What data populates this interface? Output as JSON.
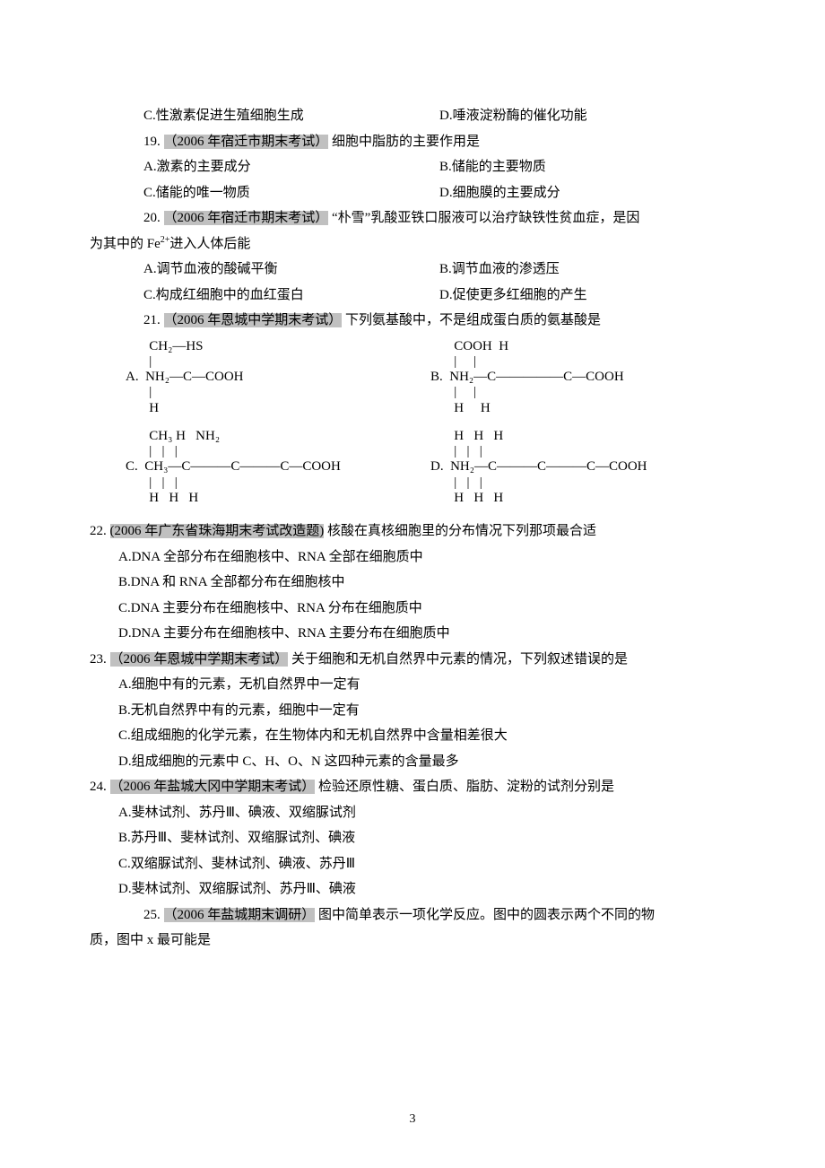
{
  "q18": {
    "optC": "C.性激素促进生殖细胞生成",
    "optD": "D.唾液淀粉酶的催化功能"
  },
  "q19": {
    "num": "19.",
    "src": "（2006 年宿迁市期末考试）",
    "stem": "细胞中脂肪的主要作用是",
    "optA": "A.激素的主要成分",
    "optB": "B.储能的主要物质",
    "optC": "C.储能的唯一物质",
    "optD": "D.细胞膜的主要成分"
  },
  "q20": {
    "num": "20.",
    "src": "（2006 年宿迁市期末考试）",
    "stem": "“朴雪”乳酸亚铁口服液可以治疗缺铁性贫血症，是因",
    "stem2_prefix": "为其中的 Fe",
    "stem2_sup": "2+",
    "stem2_suffix": "进入人体后能",
    "optA": "A.调节血液的酸碱平衡",
    "optB": "B.调节血液的渗透压",
    "optC": "C.构成红细胞中的血红蛋白",
    "optD": "D.促使更多红细胞的产生"
  },
  "q21": {
    "num": "21.",
    "src": "（2006 年恩城中学期末考试）",
    "stem": "下列氨基酸中，不是组成蛋白质的氨基酸是",
    "A": {
      "label": "A.",
      "l1": "       CH₂—HS",
      "l2": "       |",
      "l3": "  NH₂—C—COOH",
      "l4": "       |",
      "l5": "       H"
    },
    "B": {
      "label": "B.",
      "l1": "       COOH  H",
      "l2": "       |     |",
      "l3": "  NH₂—C—————C—COOH",
      "l4": "       |     |",
      "l5": "       H     H"
    },
    "C": {
      "label": "C.",
      "l1": "       CH₃ H   NH₂",
      "l2": "       |   |   |",
      "l3": "  CH₃—C———C———C—COOH",
      "l4": "       |   |   |",
      "l5": "       H   H   H"
    },
    "D": {
      "label": "D.",
      "l1": "       H   H   H",
      "l2": "       |   |   |",
      "l3": "  NH₂—C———C———C—COOH",
      "l4": "       |   |   |",
      "l5": "       H   H   H"
    }
  },
  "q22": {
    "num": "22.",
    "src": "(2006 年广东省珠海期末考试改造题)",
    "stem": "核酸在真核细胞里的分布情况下列那项最合适",
    "optA": "A.DNA 全部分布在细胞核中、RNA 全部在细胞质中",
    "optB": "B.DNA 和 RNA 全部都分布在细胞核中",
    "optC": "C.DNA 主要分布在细胞核中、RNA 分布在细胞质中",
    "optD": "D.DNA 主要分布在细胞核中、RNA 主要分布在细胞质中"
  },
  "q23": {
    "num": "23.",
    "src": "（2006 年恩城中学期末考试）",
    "stem": "关于细胞和无机自然界中元素的情况，下列叙述错误的是",
    "optA": "A.细胞中有的元素，无机自然界中一定有",
    "optB": "B.无机自然界中有的元素，细胞中一定有",
    "optC": "C.组成细胞的化学元素，在生物体内和无机自然界中含量相差很大",
    "optD": "D.组成细胞的元素中 C、H、O、N 这四种元素的含量最多"
  },
  "q24": {
    "num": "24.",
    "src": "（2006 年盐城大冈中学期末考试）",
    "stem": "检验还原性糖、蛋白质、脂肪、淀粉的试剂分别是",
    "optA": "A.斐林试剂、苏丹Ⅲ、碘液、双缩脲试剂",
    "optB": "B.苏丹Ⅲ、斐林试剂、双缩脲试剂、碘液",
    "optC": "C.双缩脲试剂、斐林试剂、碘液、苏丹Ⅲ",
    "optD": "D.斐林试剂、双缩脲试剂、苏丹Ⅲ、碘液"
  },
  "q25": {
    "num": "25.",
    "src": "（2006 年盐城期末调研）",
    "stem": "图中简单表示一项化学反应。图中的圆表示两个不同的物",
    "stem2": "质，图中 x 最可能是"
  },
  "pagenum": "3"
}
